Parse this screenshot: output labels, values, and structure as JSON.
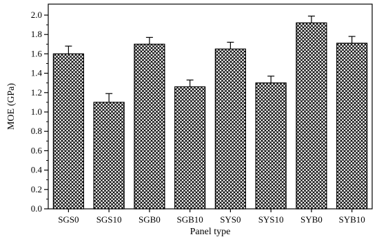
{
  "chart_data": {
    "type": "bar",
    "categories": [
      "SGS0",
      "SGS10",
      "SGB0",
      "SGB10",
      "SYS0",
      "SYS10",
      "SYB0",
      "SYB10"
    ],
    "values": [
      1.6,
      1.1,
      1.7,
      1.26,
      1.65,
      1.3,
      1.92,
      1.71
    ],
    "error": [
      0.08,
      0.09,
      0.07,
      0.07,
      0.07,
      0.07,
      0.07,
      0.07
    ],
    "xlabel": "Panel type",
    "ylabel": "MOE (GPa)",
    "ylim": [
      0.0,
      2.0
    ],
    "yticks": [
      "0.0",
      "0.2",
      "0.4",
      "0.6",
      "0.8",
      "1.0",
      "1.2",
      "1.4",
      "1.6",
      "1.8",
      "2.0"
    ],
    "bar_pattern": "crosshatch",
    "grid": false,
    "colors": {
      "bar_fill": "#ffffff",
      "hatch": "#000000",
      "axis": "#000000"
    }
  }
}
